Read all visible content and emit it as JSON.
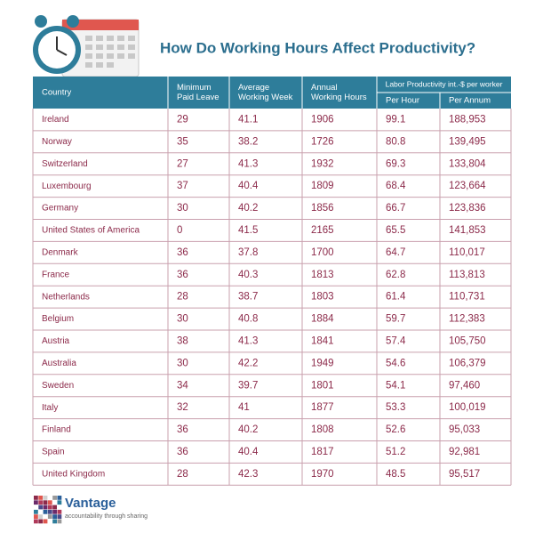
{
  "header": {
    "title": "How Do Working Hours Affect Productivity?"
  },
  "table": {
    "columns": [
      [
        "Country"
      ],
      [
        "Minimum",
        "Paid Leave"
      ],
      [
        "Average",
        "Working Week"
      ],
      [
        "Annual",
        "Working Hours"
      ]
    ],
    "group": {
      "label": "Labor Productivity int.-$ per worker",
      "columns": [
        "Per Hour",
        "Per Annum"
      ]
    },
    "rows": [
      [
        "Ireland",
        "29",
        "41.1",
        "1906",
        "99.1",
        "188,953"
      ],
      [
        "Norway",
        "35",
        "38.2",
        "1726",
        "80.8",
        "139,495"
      ],
      [
        "Switzerland",
        "27",
        "41.3",
        "1932",
        "69.3",
        "133,804"
      ],
      [
        "Luxembourg",
        "37",
        "40.4",
        "1809",
        "68.4",
        "123,664"
      ],
      [
        "Germany",
        "30",
        "40.2",
        "1856",
        "66.7",
        "123,836"
      ],
      [
        "United States of America",
        "0",
        "41.5",
        "2165",
        "65.5",
        "141,853"
      ],
      [
        "Denmark",
        "36",
        "37.8",
        "1700",
        "64.7",
        "110,017"
      ],
      [
        "France",
        "36",
        "40.3",
        "1813",
        "62.8",
        "113,813"
      ],
      [
        "Netherlands",
        "28",
        "38.7",
        "1803",
        "61.4",
        "110,731"
      ],
      [
        "Belgium",
        "30",
        "40.8",
        "1884",
        "59.7",
        "112,383"
      ],
      [
        "Austria",
        "38",
        "41.3",
        "1841",
        "57.4",
        "105,750"
      ],
      [
        "Australia",
        "30",
        "42.2",
        "1949",
        "54.6",
        "106,379"
      ],
      [
        "Sweden",
        "34",
        "39.7",
        "1801",
        "54.1",
        "97,460"
      ],
      [
        "Italy",
        "32",
        "41",
        "1877",
        "53.3",
        "100,019"
      ],
      [
        "Finland",
        "36",
        "40.2",
        "1808",
        "52.6",
        "95,033"
      ],
      [
        "Spain",
        "36",
        "40.4",
        "1817",
        "51.2",
        "92,981"
      ],
      [
        "United Kingdom",
        "28",
        "42.3",
        "1970",
        "48.5",
        "95,517"
      ]
    ]
  },
  "footer": {
    "brand": "Vantage",
    "tagline": "accountability through sharing"
  }
}
